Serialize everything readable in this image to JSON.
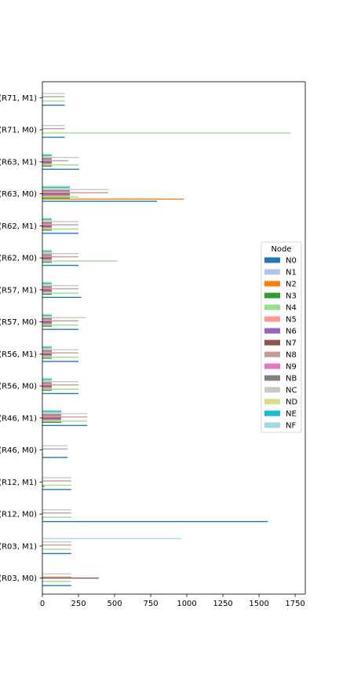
{
  "chart_data": {
    "type": "bar",
    "orientation": "horizontal",
    "title": "",
    "xlabel": "",
    "ylabel": "",
    "xlim": [
      0,
      1820
    ],
    "xticks": [
      0,
      250,
      500,
      750,
      1000,
      1250,
      1500,
      1750
    ],
    "grid": false,
    "legend": {
      "title": "Node",
      "position": "right"
    },
    "categories": [
      "(R03, M0)",
      "(R03, M1)",
      "(R12, M0)",
      "(R12, M1)",
      "(R46, M0)",
      "(R46, M1)",
      "(R56, M0)",
      "(R56, M1)",
      "(R57, M0)",
      "(R57, M1)",
      "(R62, M0)",
      "(R62, M1)",
      "(R63, M0)",
      "(R63, M1)",
      "(R71, M0)",
      "(R71, M1)"
    ],
    "series": [
      {
        "name": "N0",
        "color": "#1f77b4",
        "values": [
          200,
          200,
          1560,
          200,
          175,
          310,
          250,
          250,
          250,
          270,
          250,
          250,
          795,
          255,
          155,
          155
        ]
      },
      {
        "name": "N1",
        "color": "#aec7e8",
        "values": [
          0,
          0,
          0,
          0,
          0,
          0,
          0,
          0,
          0,
          0,
          0,
          0,
          0,
          0,
          0,
          0
        ]
      },
      {
        "name": "N2",
        "color": "#ff7f0e",
        "values": [
          0,
          0,
          0,
          0,
          0,
          0,
          0,
          0,
          0,
          0,
          0,
          0,
          980,
          0,
          0,
          0
        ]
      },
      {
        "name": "N3",
        "color": "#2ca02c",
        "values": [
          0,
          0,
          5,
          15,
          5,
          130,
          65,
          65,
          65,
          65,
          65,
          65,
          190,
          65,
          0,
          0
        ]
      },
      {
        "name": "N4",
        "color": "#98df8a",
        "values": [
          200,
          200,
          200,
          200,
          0,
          310,
          250,
          250,
          250,
          250,
          520,
          250,
          250,
          250,
          1720,
          155
        ]
      },
      {
        "name": "N5",
        "color": "#ff9896",
        "values": [
          0,
          0,
          0,
          0,
          0,
          130,
          65,
          65,
          65,
          65,
          65,
          65,
          190,
          65,
          0,
          0
        ]
      },
      {
        "name": "N6",
        "color": "#9467bd",
        "values": [
          0,
          0,
          0,
          0,
          0,
          130,
          65,
          65,
          65,
          65,
          65,
          65,
          190,
          65,
          0,
          0
        ]
      },
      {
        "name": "N7",
        "color": "#8c564b",
        "values": [
          390,
          0,
          0,
          0,
          0,
          130,
          65,
          65,
          65,
          65,
          65,
          65,
          190,
          65,
          0,
          0
        ]
      },
      {
        "name": "N8",
        "color": "#c49c94",
        "values": [
          200,
          200,
          200,
          200,
          175,
          310,
          250,
          250,
          250,
          250,
          250,
          250,
          455,
          180,
          155,
          155
        ]
      },
      {
        "name": "N9",
        "color": "#e377c2",
        "values": [
          0,
          0,
          0,
          0,
          0,
          130,
          65,
          65,
          65,
          65,
          65,
          65,
          190,
          65,
          0,
          0
        ]
      },
      {
        "name": "NB",
        "color": "#7f7f7f",
        "values": [
          0,
          0,
          0,
          0,
          0,
          130,
          65,
          65,
          65,
          65,
          65,
          65,
          190,
          65,
          0,
          0
        ]
      },
      {
        "name": "NC",
        "color": "#c7c7c7",
        "values": [
          200,
          200,
          200,
          200,
          175,
          310,
          250,
          250,
          300,
          250,
          250,
          250,
          460,
          255,
          155,
          155
        ]
      },
      {
        "name": "ND",
        "color": "#dbdb8d",
        "values": [
          0,
          0,
          0,
          0,
          0,
          130,
          65,
          65,
          65,
          65,
          65,
          65,
          190,
          65,
          0,
          0
        ]
      },
      {
        "name": "NE",
        "color": "#17becf",
        "values": [
          0,
          0,
          0,
          0,
          0,
          130,
          65,
          65,
          65,
          65,
          65,
          65,
          190,
          65,
          0,
          0
        ]
      },
      {
        "name": "NF",
        "color": "#9edae5",
        "values": [
          0,
          960,
          0,
          0,
          0,
          130,
          65,
          65,
          65,
          65,
          65,
          65,
          195,
          65,
          0,
          0
        ]
      }
    ]
  }
}
